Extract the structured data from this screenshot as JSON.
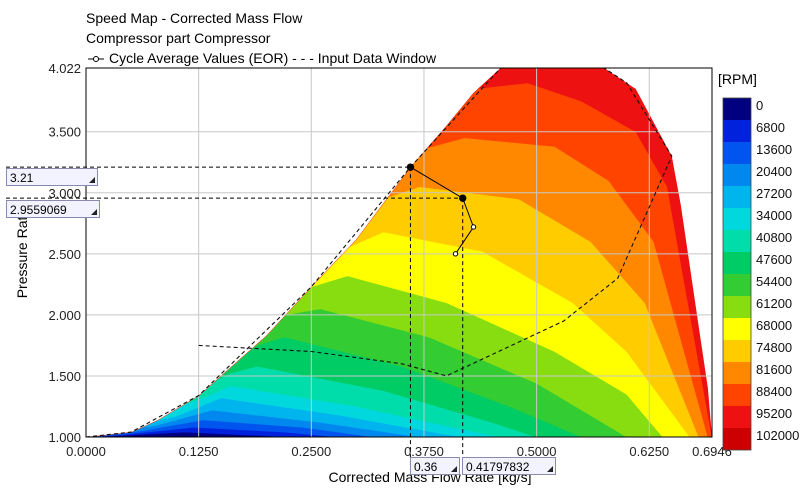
{
  "chart_data": {
    "type": "area",
    "title_lines": [
      "Speed Map - Corrected Mass Flow",
      "Compressor part Compressor"
    ],
    "legend_text": "Cycle Average Values (EOR)   - - - Input Data Window",
    "xlabel": "Corrected Mass Flow Rate [kg/s]",
    "ylabel": "Pressure Ratio",
    "xlim": [
      0.0,
      0.6946
    ],
    "ylim": [
      1.0,
      4.022
    ],
    "xticks": [
      "0.0000",
      "0.1250",
      "0.2500",
      "0.3750",
      "0.5000",
      "0.6250",
      "0.6946"
    ],
    "xtick_values": [
      0.0,
      0.125,
      0.25,
      0.375,
      0.5,
      0.625,
      0.6946
    ],
    "yticks": [
      "1.000",
      "1.500",
      "2.000",
      "2.500",
      "3.000",
      "3.500",
      "4.022"
    ],
    "ytick_values": [
      1.0,
      1.5,
      2.0,
      2.5,
      3.0,
      3.5,
      4.022
    ],
    "grid": true,
    "colorbar": {
      "unit": "[RPM]",
      "levels": [
        0,
        6800,
        13600,
        20400,
        27200,
        34000,
        40800,
        47600,
        54400,
        61200,
        68000,
        74800,
        81600,
        88400,
        95200,
        102000
      ],
      "colors": [
        "#000080",
        "#0022dd",
        "#0055ee",
        "#0088ee",
        "#00b5ee",
        "#00d8dd",
        "#00ddaa",
        "#00cc66",
        "#33cc33",
        "#88dd11",
        "#ffff00",
        "#ffcc00",
        "#ff8800",
        "#ff4400",
        "#ee1111",
        "#cc0000"
      ]
    },
    "envelope": [
      [
        0.0,
        1.0
      ],
      [
        0.05,
        1.04
      ],
      [
        0.08,
        1.14
      ],
      [
        0.125,
        1.34
      ],
      [
        0.2,
        1.83
      ],
      [
        0.25,
        2.23
      ],
      [
        0.3,
        2.62
      ],
      [
        0.36,
        3.21
      ],
      [
        0.4,
        3.55
      ],
      [
        0.43,
        3.82
      ],
      [
        0.46,
        4.022
      ],
      [
        0.575,
        4.022
      ],
      [
        0.61,
        3.85
      ],
      [
        0.65,
        3.3
      ],
      [
        0.66,
        2.9
      ],
      [
        0.67,
        2.4
      ],
      [
        0.68,
        1.9
      ],
      [
        0.69,
        1.4
      ],
      [
        0.6946,
        1.0
      ]
    ],
    "bands": [
      {
        "rpm_from": 0,
        "cut": [
          [
            0.0,
            1.0
          ],
          [
            0.02,
            1.0
          ],
          [
            0.1,
            1.02
          ],
          [
            0.17,
            1.0
          ]
        ]
      },
      {
        "rpm_from": 6800,
        "cut": [
          [
            0.0,
            1.0
          ],
          [
            0.03,
            1.01
          ],
          [
            0.11,
            1.04
          ],
          [
            0.2,
            1.01
          ],
          [
            0.23,
            1.0
          ]
        ]
      },
      {
        "rpm_from": 13600,
        "cut": [
          [
            0.0,
            1.0
          ],
          [
            0.04,
            1.02
          ],
          [
            0.12,
            1.08
          ],
          [
            0.22,
            1.04
          ],
          [
            0.28,
            1.0
          ]
        ]
      },
      {
        "rpm_from": 20400,
        "cut": [
          [
            0.0,
            1.0
          ],
          [
            0.06,
            1.05
          ],
          [
            0.13,
            1.14
          ],
          [
            0.24,
            1.08
          ],
          [
            0.32,
            1.0
          ]
        ]
      },
      {
        "rpm_from": 27200,
        "cut": [
          [
            0.0,
            1.0
          ],
          [
            0.08,
            1.1
          ],
          [
            0.14,
            1.22
          ],
          [
            0.26,
            1.12
          ],
          [
            0.37,
            1.0
          ]
        ]
      },
      {
        "rpm_from": 34000,
        "cut": [
          [
            0.0,
            1.0
          ],
          [
            0.1,
            1.17
          ],
          [
            0.15,
            1.32
          ],
          [
            0.28,
            1.18
          ],
          [
            0.4,
            1.02
          ],
          [
            0.42,
            1.0
          ]
        ]
      },
      {
        "rpm_from": 40800,
        "cut": [
          [
            0.0,
            1.0
          ],
          [
            0.13,
            1.32
          ],
          [
            0.16,
            1.42
          ],
          [
            0.3,
            1.25
          ],
          [
            0.42,
            1.06
          ],
          [
            0.46,
            1.0
          ]
        ]
      },
      {
        "rpm_from": 47600,
        "cut": [
          [
            0.0,
            1.0
          ],
          [
            0.16,
            1.52
          ],
          [
            0.19,
            1.58
          ],
          [
            0.33,
            1.38
          ],
          [
            0.45,
            1.12
          ],
          [
            0.5,
            1.0
          ]
        ]
      },
      {
        "rpm_from": 54400,
        "cut": [
          [
            0.0,
            1.0
          ],
          [
            0.19,
            1.75
          ],
          [
            0.22,
            1.82
          ],
          [
            0.35,
            1.58
          ],
          [
            0.47,
            1.25
          ],
          [
            0.55,
            1.0
          ]
        ]
      },
      {
        "rpm_from": 61200,
        "cut": [
          [
            0.0,
            1.0
          ],
          [
            0.22,
            2.0
          ],
          [
            0.26,
            2.05
          ],
          [
            0.38,
            1.82
          ],
          [
            0.5,
            1.44
          ],
          [
            0.6,
            1.0
          ]
        ]
      },
      {
        "rpm_from": 68000,
        "cut": [
          [
            0.0,
            1.0
          ],
          [
            0.25,
            2.23
          ],
          [
            0.29,
            2.32
          ],
          [
            0.4,
            2.1
          ],
          [
            0.52,
            1.7
          ],
          [
            0.6,
            1.35
          ],
          [
            0.64,
            1.0
          ]
        ]
      },
      {
        "rpm_from": 74800,
        "cut": [
          [
            0.0,
            1.0
          ],
          [
            0.29,
            2.55
          ],
          [
            0.33,
            2.68
          ],
          [
            0.44,
            2.52
          ],
          [
            0.54,
            2.1
          ],
          [
            0.6,
            1.7
          ],
          [
            0.67,
            1.0
          ]
        ]
      },
      {
        "rpm_from": 81600,
        "cut": [
          [
            0.0,
            1.0
          ],
          [
            0.33,
            2.95
          ],
          [
            0.37,
            3.05
          ],
          [
            0.48,
            2.95
          ],
          [
            0.56,
            2.6
          ],
          [
            0.62,
            2.1
          ],
          [
            0.68,
            1.0
          ]
        ]
      },
      {
        "rpm_from": 88400,
        "cut": [
          [
            0.0,
            1.0
          ],
          [
            0.37,
            3.35
          ],
          [
            0.42,
            3.45
          ],
          [
            0.52,
            3.38
          ],
          [
            0.58,
            3.1
          ],
          [
            0.63,
            2.6
          ],
          [
            0.69,
            1.0
          ]
        ]
      },
      {
        "rpm_from": 95200,
        "cut": [
          [
            0.0,
            1.0
          ],
          [
            0.43,
            3.85
          ],
          [
            0.49,
            3.9
          ],
          [
            0.55,
            3.75
          ],
          [
            0.61,
            3.5
          ],
          [
            0.645,
            3.05
          ],
          [
            0.6946,
            1.0
          ]
        ]
      }
    ],
    "window_lines": [
      [
        [
          0.125,
          1.75
        ],
        [
          0.25,
          1.7
        ],
        [
          0.35,
          1.6
        ],
        [
          0.4,
          1.5
        ],
        [
          0.53,
          1.95
        ],
        [
          0.59,
          2.3
        ],
        [
          0.65,
          3.3
        ],
        [
          0.6,
          3.9
        ],
        [
          0.575,
          4.022
        ]
      ],
      [
        [
          0.0,
          1.0
        ],
        [
          0.05,
          1.04
        ],
        [
          0.125,
          1.34
        ],
        [
          0.25,
          2.23
        ],
        [
          0.36,
          3.21
        ],
        [
          0.46,
          4.022
        ],
        [
          0.575,
          4.022
        ]
      ]
    ],
    "cycle_points": [
      [
        0.36,
        3.21
      ],
      [
        0.418,
        2.956
      ],
      [
        0.43,
        2.72
      ],
      [
        0.41,
        2.5
      ]
    ],
    "crosshairs": [
      {
        "x_label": "0.36",
        "y_label": "3.21",
        "x": 0.36,
        "y": 3.21
      },
      {
        "x_label": "0.41797832",
        "y_label": "2.9559069",
        "x": 0.418,
        "y": 2.956
      }
    ]
  }
}
